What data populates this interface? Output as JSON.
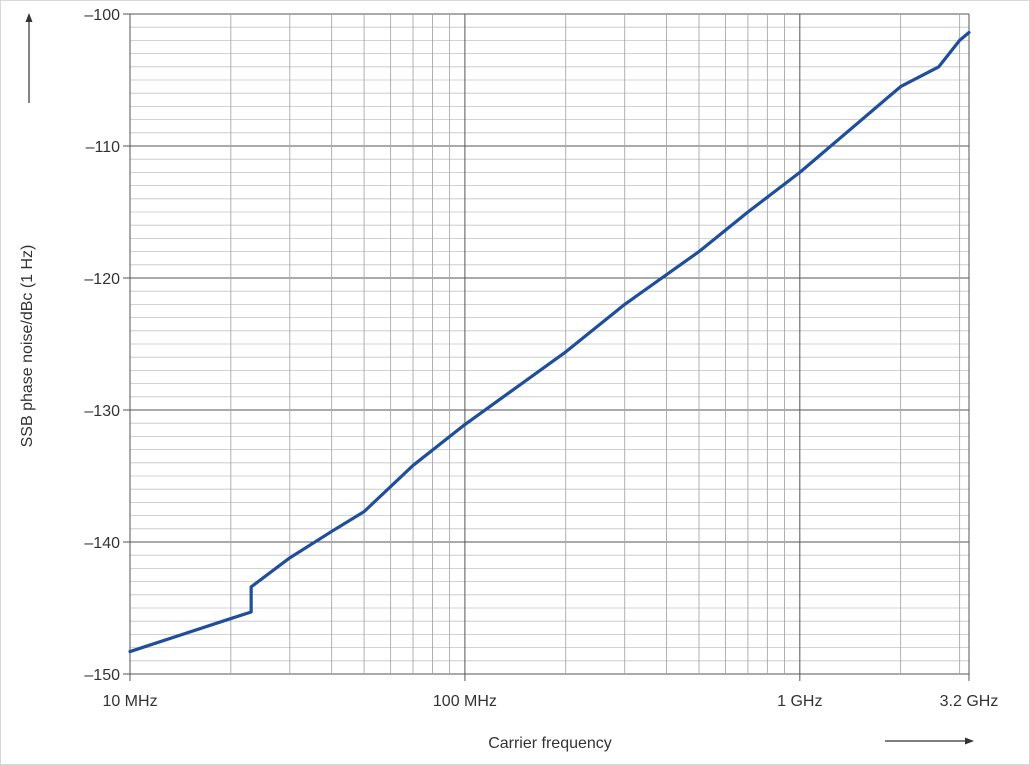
{
  "chart_data": {
    "type": "line",
    "title": "",
    "xlabel": "Carrier frequency",
    "ylabel": "SSB phase noise/dBc (1 Hz)",
    "x_scale": "log",
    "xlim": [
      10,
      3200
    ],
    "ylim": [
      -150,
      -100
    ],
    "x_ticks": [
      {
        "value": 10,
        "label": "10 MHz"
      },
      {
        "value": 100,
        "label": "100 MHz"
      },
      {
        "value": 1000,
        "label": "1 GHz"
      },
      {
        "value": 3200,
        "label": "3.2 GHz"
      }
    ],
    "y_ticks": [
      {
        "value": -100,
        "label": "–100"
      },
      {
        "value": -110,
        "label": "–110"
      },
      {
        "value": -120,
        "label": "–120"
      },
      {
        "value": -130,
        "label": "–130"
      },
      {
        "value": -140,
        "label": "–140"
      },
      {
        "value": -150,
        "label": "–150"
      }
    ],
    "grid": true,
    "line_color": "#1f4e9a",
    "series": [
      {
        "x": [
          10,
          20,
          23,
          23,
          30,
          40,
          50,
          70,
          100,
          200,
          300,
          500,
          700,
          1000,
          2000,
          2600,
          3000,
          3200
        ],
        "y": [
          -148.3,
          -145.8,
          -145.3,
          -143.4,
          -141.2,
          -139.2,
          -137.7,
          -134.2,
          -131.1,
          -125.6,
          -122.0,
          -118.0,
          -115.0,
          -112.0,
          -105.5,
          -104.0,
          -102.0,
          -101.4
        ]
      }
    ]
  }
}
